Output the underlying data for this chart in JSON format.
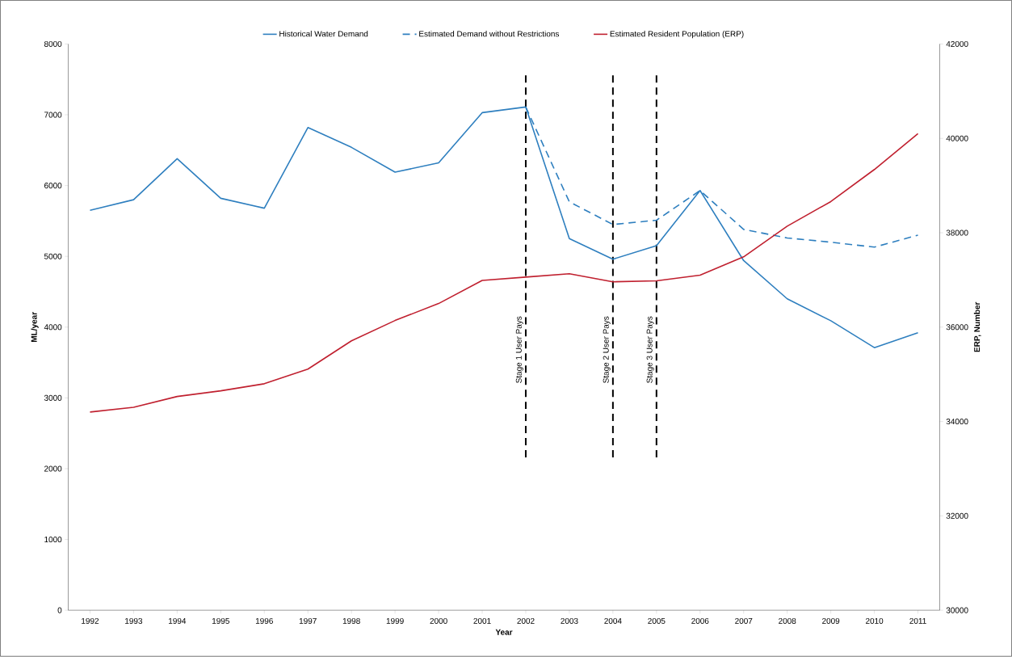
{
  "chart_data": {
    "type": "line",
    "xlabel": "Year",
    "ylabel": "ML/year",
    "y2label": "ERP, Number",
    "categories": [
      "1992",
      "1993",
      "1994",
      "1995",
      "1996",
      "1997",
      "1998",
      "1999",
      "2000",
      "2001",
      "2002",
      "2003",
      "2004",
      "2005",
      "2006",
      "2007",
      "2008",
      "2009",
      "2010",
      "2011"
    ],
    "series": [
      {
        "name": "Historical Water Demand",
        "color": "#2e7fbf",
        "line_style": "solid",
        "values": [
          5650,
          5800,
          6380,
          5820,
          5680,
          6820,
          6540,
          6190,
          6320,
          7030,
          7110,
          5250,
          4960,
          5150,
          5930,
          4940,
          4400,
          4090,
          3710,
          3920
        ]
      },
      {
        "name": "Estimated Demand without Restrictions",
        "color": "#2e7fbf",
        "line_style": "dashed",
        "values": [
          null,
          null,
          null,
          null,
          null,
          null,
          null,
          null,
          null,
          null,
          7110,
          5770,
          5450,
          5510,
          5930,
          5380,
          5260,
          5200,
          5130,
          5300
        ]
      },
      {
        "name": "Estimated Resident Population (ERP)",
        "color": "#c0202f",
        "line_style": "solid",
        "axis": "y2",
        "values": [
          34200,
          34300,
          34530,
          34650,
          34800,
          35110,
          35710,
          36140,
          36500,
          36990,
          37060,
          37130,
          36960,
          36980,
          37100,
          37490,
          38140,
          38660,
          39340,
          40100
        ]
      }
    ],
    "ylim": [
      0,
      8000
    ],
    "yticks": [
      0,
      1000,
      2000,
      3000,
      4000,
      5000,
      6000,
      7000,
      8000
    ],
    "y2lim": [
      30000,
      42000
    ],
    "y2ticks": [
      30000,
      32000,
      34000,
      36000,
      38000,
      40000,
      42000
    ],
    "ref_lines": [
      {
        "axis": "x",
        "value": "2002",
        "label": "Stage 1 User Pays",
        "color": "#000000",
        "line_style": "dashed"
      },
      {
        "axis": "x",
        "value": "2004",
        "label": "Stage 2 User Pays",
        "color": "#000000",
        "line_style": "dashed"
      },
      {
        "axis": "x",
        "value": "2005",
        "label": "Stage 3 User Pays",
        "color": "#000000",
        "line_style": "dashed"
      }
    ],
    "legend": "top"
  }
}
